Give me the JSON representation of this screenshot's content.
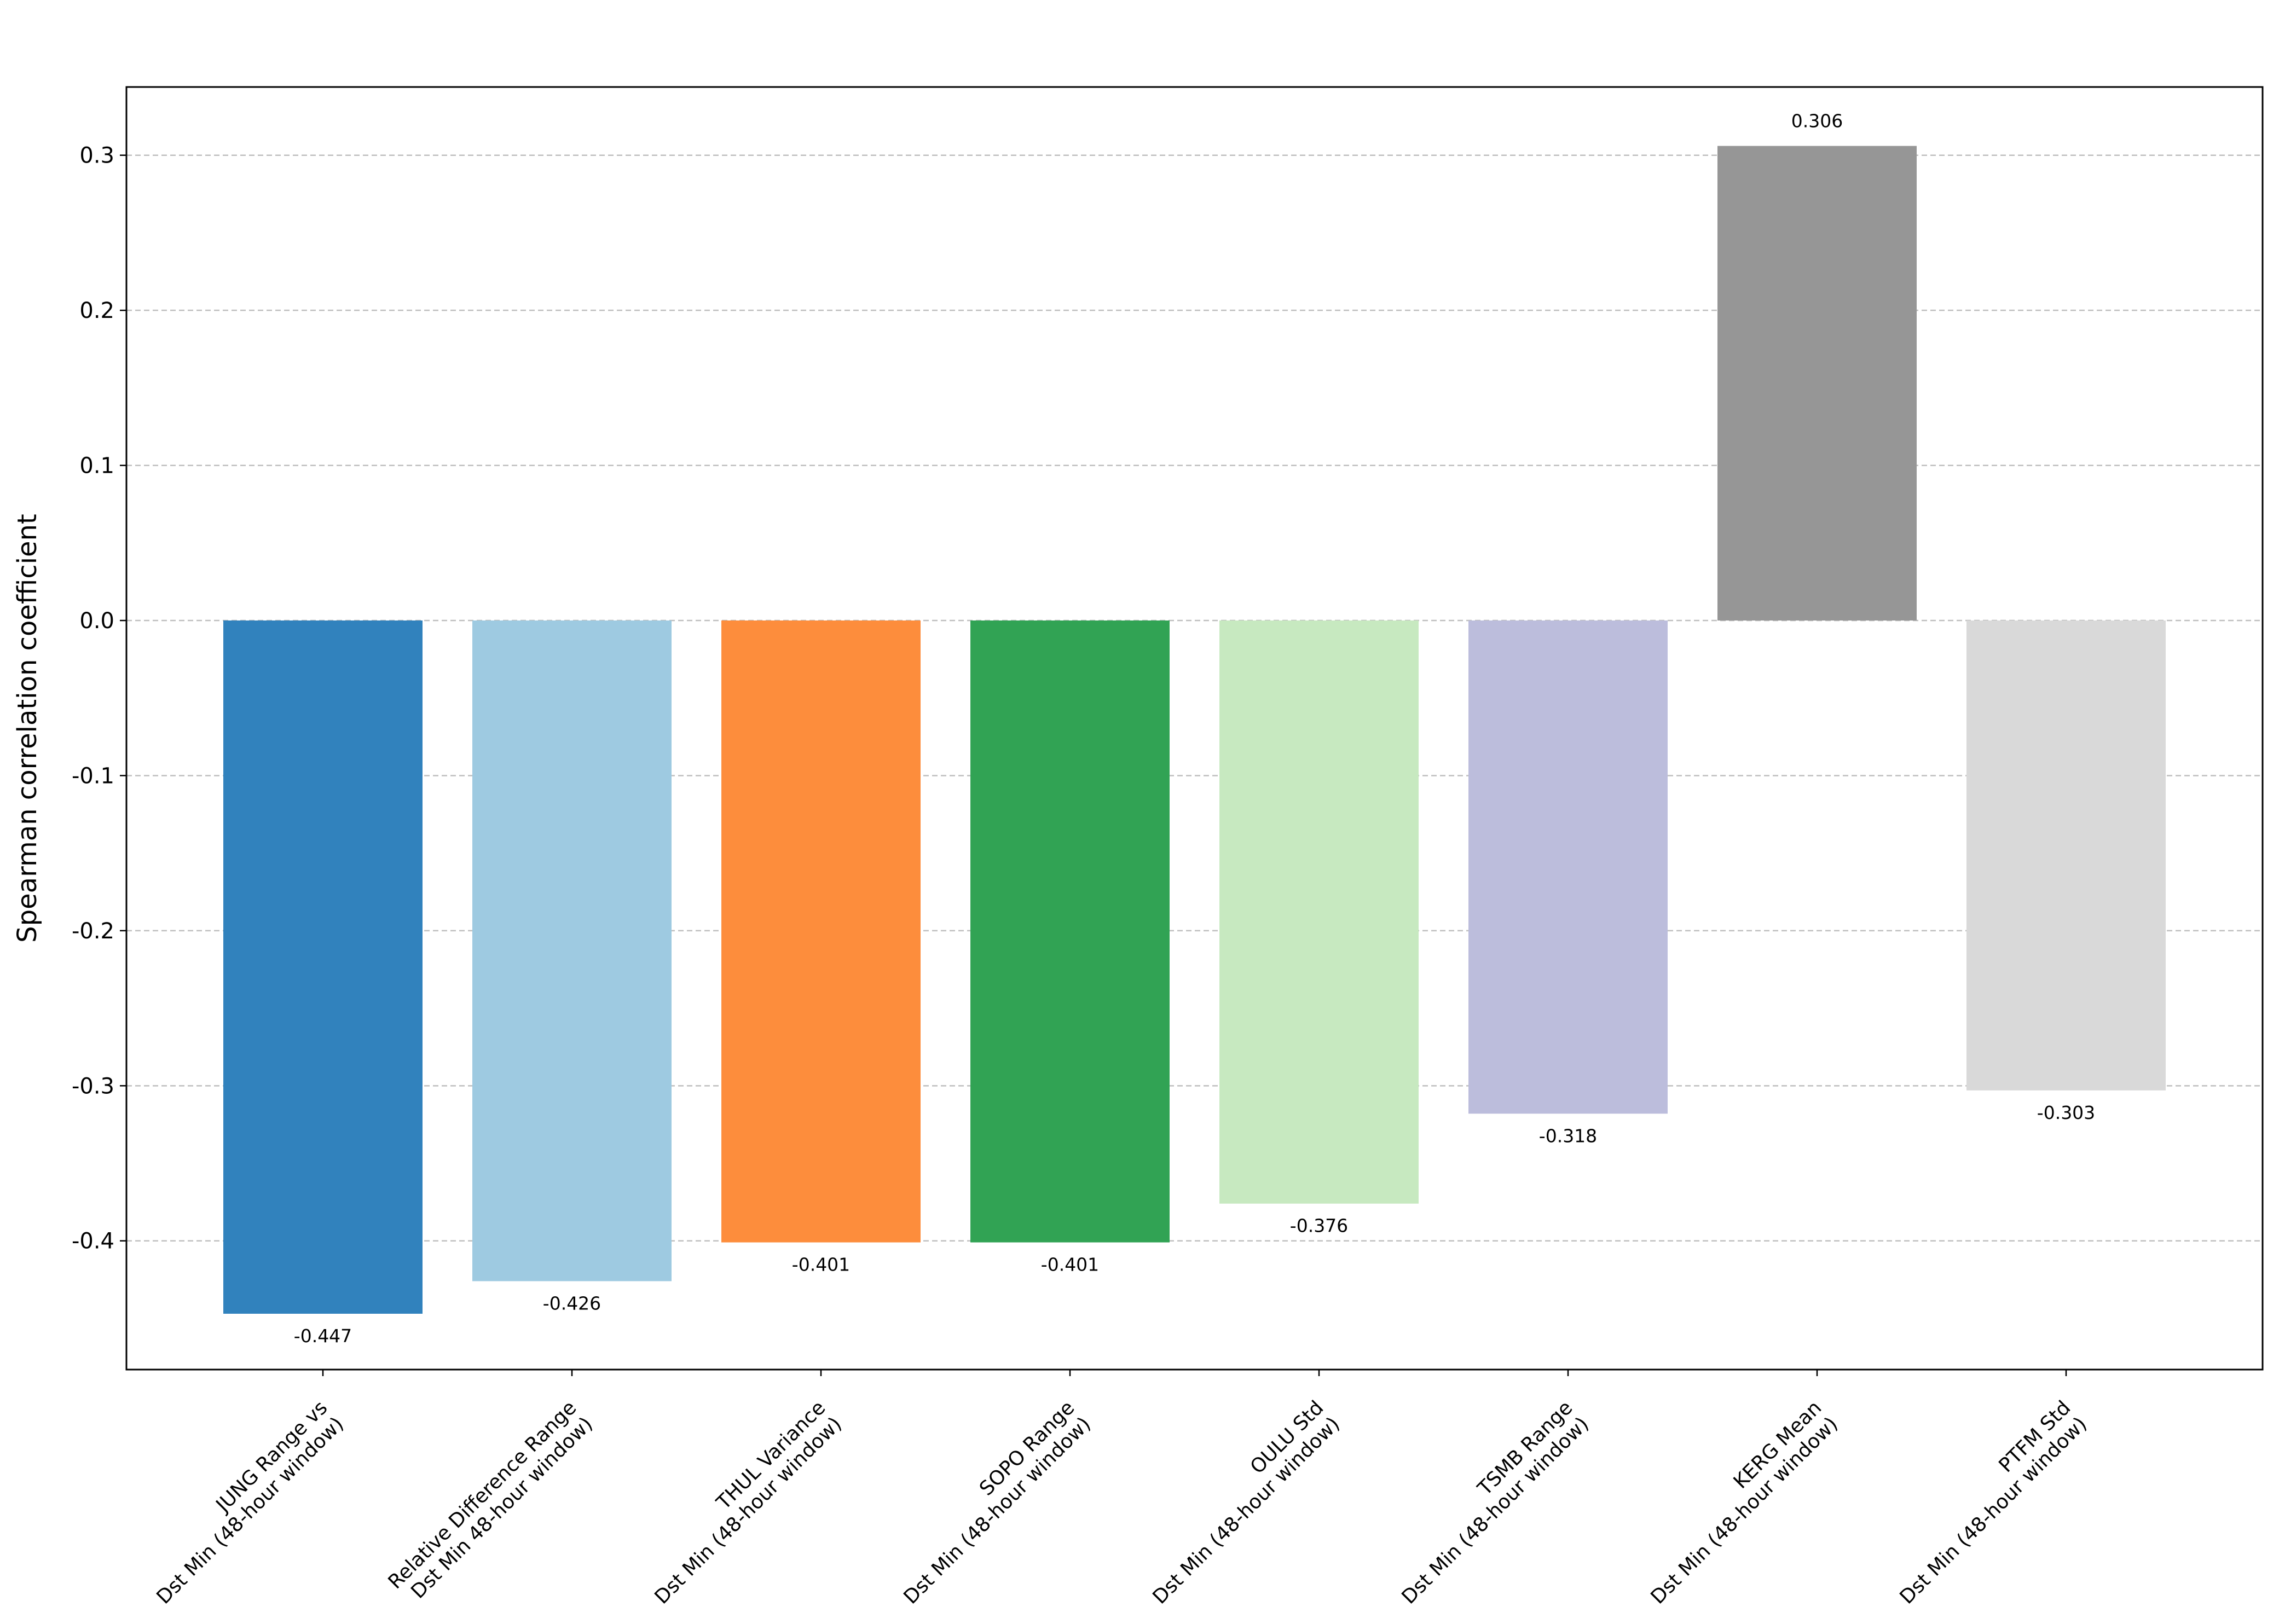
{
  "chart_data": {
    "type": "bar",
    "title": "",
    "xlabel": "",
    "ylabel": "Spearman correlation coefficient",
    "ylim": [
      -0.483,
      0.344
    ],
    "yticks": [
      0.3,
      0.2,
      0.1,
      0.0,
      -0.1,
      -0.2,
      -0.3,
      -0.4
    ],
    "ytick_labels": [
      "0.3",
      "0.2",
      "0.1",
      "0.0",
      "-0.1",
      "-0.2",
      "-0.3",
      "-0.4"
    ],
    "grid": true,
    "legend": "none",
    "categories": [
      [
        "JUNG Range vs",
        "Dst Min (48-hour window)"
      ],
      [
        "Relative Difference Range",
        "Dst Min 48-hour window)"
      ],
      [
        "THUL Variance",
        "Dst Min (48-hour window)"
      ],
      [
        "SOPO Range",
        "Dst Min (48-hour window)"
      ],
      [
        "OULU Std",
        "Dst Min (48-hour window)"
      ],
      [
        "TSMB Range",
        "Dst Min (48-hour window)"
      ],
      [
        "KERG Mean",
        "Dst Min (48-hour window)"
      ],
      [
        "PTFM Std",
        "Dst Min (48-hour window)"
      ]
    ],
    "values": [
      -0.447,
      -0.426,
      -0.401,
      -0.401,
      -0.376,
      -0.318,
      0.306,
      -0.303
    ],
    "value_labels": [
      "-0.447",
      "-0.426",
      "-0.401",
      "-0.401",
      "-0.376",
      "-0.318",
      "0.306",
      "-0.303"
    ],
    "colors": [
      "#3182bd",
      "#9ecae1",
      "#fd8d3c",
      "#31a354",
      "#c7e9c0",
      "#bcbddc",
      "#969696",
      "#d9d9d9"
    ]
  }
}
